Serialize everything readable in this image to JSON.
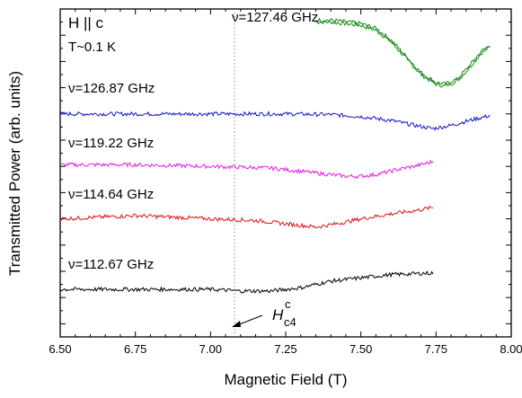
{
  "chart_data": {
    "type": "line",
    "title": "",
    "xlabel": "Magnetic Field (T)",
    "ylabel": "Transmitted Power (arb. units)",
    "xlim": [
      6.5,
      8.0
    ],
    "x_ticks": [
      "6.50",
      "6.75",
      "7.00",
      "7.25",
      "7.50",
      "7.75",
      "8.00"
    ],
    "y_tick_labels": "none",
    "grid": false,
    "legend": "none",
    "annotations": {
      "field_orientation": "H || c",
      "temperature": "T~0.1 K",
      "critical_field_symbol": "H",
      "critical_field_sup": "c",
      "critical_field_sub": "c4",
      "critical_field_value": 7.08
    },
    "series": [
      {
        "name": "ν=127.46 GHz",
        "color": "#138a13",
        "x_range": [
          7.35,
          7.93
        ],
        "points": [
          [
            7.35,
            0.96
          ],
          [
            7.4,
            0.96
          ],
          [
            7.45,
            0.955
          ],
          [
            7.5,
            0.95
          ],
          [
            7.55,
            0.935
          ],
          [
            7.6,
            0.9
          ],
          [
            7.65,
            0.85
          ],
          [
            7.7,
            0.8
          ],
          [
            7.75,
            0.77
          ],
          [
            7.78,
            0.765
          ],
          [
            7.82,
            0.78
          ],
          [
            7.86,
            0.82
          ],
          [
            7.9,
            0.865
          ],
          [
            7.93,
            0.885
          ]
        ]
      },
      {
        "name": "ν=126.87 GHz",
        "color": "#1414c8",
        "x_range": [
          6.5,
          7.93
        ],
        "points": [
          [
            6.5,
            0.68
          ],
          [
            6.75,
            0.68
          ],
          [
            7.0,
            0.68
          ],
          [
            7.25,
            0.68
          ],
          [
            7.4,
            0.678
          ],
          [
            7.5,
            0.672
          ],
          [
            7.6,
            0.66
          ],
          [
            7.68,
            0.645
          ],
          [
            7.74,
            0.635
          ],
          [
            7.8,
            0.645
          ],
          [
            7.86,
            0.66
          ],
          [
            7.93,
            0.675
          ]
        ]
      },
      {
        "name": "ν=119.22 GHz",
        "color": "#e01ee0",
        "x_range": [
          6.5,
          7.74
        ],
        "points": [
          [
            6.5,
            0.525
          ],
          [
            6.75,
            0.525
          ],
          [
            7.0,
            0.52
          ],
          [
            7.2,
            0.515
          ],
          [
            7.35,
            0.5
          ],
          [
            7.45,
            0.49
          ],
          [
            7.5,
            0.49
          ],
          [
            7.55,
            0.495
          ],
          [
            7.62,
            0.51
          ],
          [
            7.7,
            0.525
          ],
          [
            7.74,
            0.535
          ]
        ]
      },
      {
        "name": "ν=114.64 GHz",
        "color": "#dc1414",
        "x_range": [
          6.5,
          7.74
        ],
        "points": [
          [
            6.5,
            0.36
          ],
          [
            6.75,
            0.37
          ],
          [
            7.0,
            0.36
          ],
          [
            7.15,
            0.355
          ],
          [
            7.25,
            0.345
          ],
          [
            7.35,
            0.335
          ],
          [
            7.42,
            0.345
          ],
          [
            7.5,
            0.36
          ],
          [
            7.6,
            0.375
          ],
          [
            7.68,
            0.385
          ],
          [
            7.74,
            0.395
          ]
        ]
      },
      {
        "name": "ν=112.67 GHz",
        "color": "#000000",
        "x_range": [
          6.5,
          7.74
        ],
        "points": [
          [
            6.5,
            0.145
          ],
          [
            6.75,
            0.145
          ],
          [
            7.0,
            0.145
          ],
          [
            7.1,
            0.14
          ],
          [
            7.2,
            0.14
          ],
          [
            7.3,
            0.15
          ],
          [
            7.4,
            0.17
          ],
          [
            7.5,
            0.18
          ],
          [
            7.6,
            0.19
          ],
          [
            7.74,
            0.195
          ]
        ]
      }
    ]
  }
}
